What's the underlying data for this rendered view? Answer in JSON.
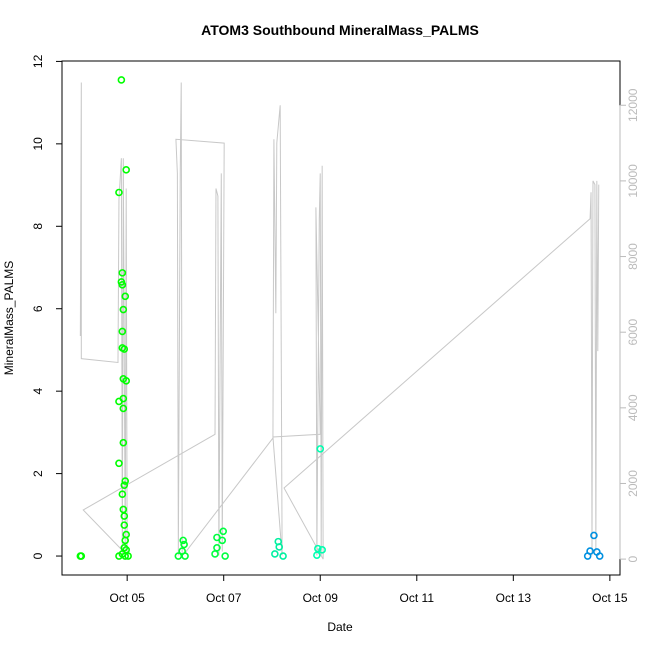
{
  "chart_data": {
    "type": "scatter",
    "title": "ATOM3 Southbound MineralMass_PALMS",
    "xlabel": "Date",
    "ylabel": "MineralMass_PALMS",
    "xlim": [
      3.65,
      15.21
    ],
    "ylim": [
      -0.46,
      12.01
    ],
    "y2lim": [
      -420,
      13170
    ],
    "xticks": [
      {
        "value": 5,
        "label": "Oct 05"
      },
      {
        "value": 7,
        "label": "Oct 07"
      },
      {
        "value": 9,
        "label": "Oct 09"
      },
      {
        "value": 11,
        "label": "Oct 11"
      },
      {
        "value": 13,
        "label": "Oct 13"
      },
      {
        "value": 15,
        "label": "Oct 15"
      }
    ],
    "yticks": [
      0,
      2,
      4,
      6,
      8,
      10,
      12
    ],
    "y2ticks": [
      0,
      2000,
      4000,
      6000,
      8000,
      10000,
      12000
    ],
    "points": {
      "x": [
        4.03,
        4.05,
        4.88,
        4.98,
        4.83,
        4.9,
        4.88,
        4.9,
        4.96,
        4.92,
        4.9,
        4.9,
        4.94,
        4.92,
        4.98,
        4.83,
        4.92,
        4.92,
        4.92,
        4.83,
        4.96,
        4.94,
        4.9,
        4.92,
        4.94,
        4.94,
        4.98,
        4.96,
        4.94,
        4.98,
        4.9,
        4.83,
        4.96,
        5.02,
        6.16,
        6.18,
        6.14,
        6.06,
        6.2,
        6.99,
        6.86,
        6.97,
        6.86,
        6.82,
        7.03,
        8.13,
        8.15,
        8.06,
        8.23,
        9.0,
        8.95,
        9.04,
        8.93,
        14.67,
        14.59,
        14.73,
        14.54,
        14.79
      ],
      "y": [
        0,
        0,
        11.55,
        9.37,
        8.82,
        6.87,
        6.65,
        6.58,
        6.3,
        5.98,
        5.45,
        5.05,
        5.02,
        4.3,
        4.25,
        3.75,
        3.82,
        3.58,
        2.75,
        2.25,
        1.82,
        1.72,
        1.5,
        1.13,
        0.97,
        0.75,
        0.52,
        0.38,
        0.2,
        0.15,
        0.05,
        0,
        0,
        0,
        0.38,
        0.28,
        0.12,
        0,
        0,
        0.6,
        0.45,
        0.38,
        0.2,
        0.05,
        0,
        0.35,
        0.22,
        0.05,
        0,
        2.6,
        0.18,
        0.15,
        0.02,
        0.5,
        0.12,
        0.1,
        0,
        0
      ],
      "colors": [
        "#00ff00",
        "#00ff00",
        "#00ff00",
        "#00ff00",
        "#00ff00",
        "#00ff00",
        "#00ff00",
        "#00ff00",
        "#00ff00",
        "#00ff00",
        "#00ff00",
        "#00ff00",
        "#00ff00",
        "#00ff00",
        "#00ff00",
        "#00ff00",
        "#00ff00",
        "#00ff00",
        "#00ff00",
        "#00ff00",
        "#00ff00",
        "#00ff00",
        "#00ff00",
        "#00ff00",
        "#00ff00",
        "#00ff00",
        "#00ff00",
        "#00ff00",
        "#00ff00",
        "#00ff00",
        "#00ff00",
        "#00ff00",
        "#00ff00",
        "#00ff00",
        "#00ff30",
        "#00ff30",
        "#00ff30",
        "#00ff30",
        "#00ff30",
        "#00ff40",
        "#00ff40",
        "#00ff40",
        "#00ff40",
        "#00ff40",
        "#00ff40",
        "#00f0a0",
        "#00f0a0",
        "#00f0a0",
        "#00f0a0",
        "#00ffb0",
        "#00ffb0",
        "#00ffb0",
        "#00ffb0",
        "#0090e0",
        "#0090e0",
        "#0090e0",
        "#0090e0",
        "#0090e0"
      ]
    },
    "line": {
      "axis": "y2",
      "color": "#c8c8c8",
      "x": [
        4.03,
        4.05,
        4.05,
        4.81,
        4.83,
        4.88,
        4.9,
        4.92,
        4.96,
        4.98,
        5.0,
        4.09,
        6.82,
        6.84,
        6.88,
        6.9,
        6.95,
        6.97,
        7.01,
        6.01,
        6.04,
        6.06,
        6.1,
        6.12,
        6.14,
        6.22,
        8.02,
        8.04,
        8.08,
        8.1,
        8.17,
        8.21,
        8.02,
        9.0,
        8.91,
        8.93,
        8.98,
        9.0,
        9.02,
        9.04,
        9.06,
        8.25,
        14.59,
        14.61,
        14.63,
        14.65,
        14.69,
        14.71,
        14.73,
        14.75,
        14.77
      ],
      "values": [
        5900,
        12600,
        5300,
        5200,
        9500,
        10600,
        100,
        10600,
        200,
        9800,
        100,
        1300,
        3300,
        9800,
        9600,
        100,
        10200,
        200,
        11000,
        11100,
        10200,
        100,
        10300,
        12600,
        100,
        200,
        3200,
        11100,
        6500,
        11000,
        12000,
        100,
        3230,
        3300,
        9300,
        100,
        9000,
        10200,
        100,
        10400,
        0,
        1880,
        9000,
        9700,
        100,
        10000,
        9900,
        200,
        10000,
        5500,
        9900
      ]
    }
  }
}
